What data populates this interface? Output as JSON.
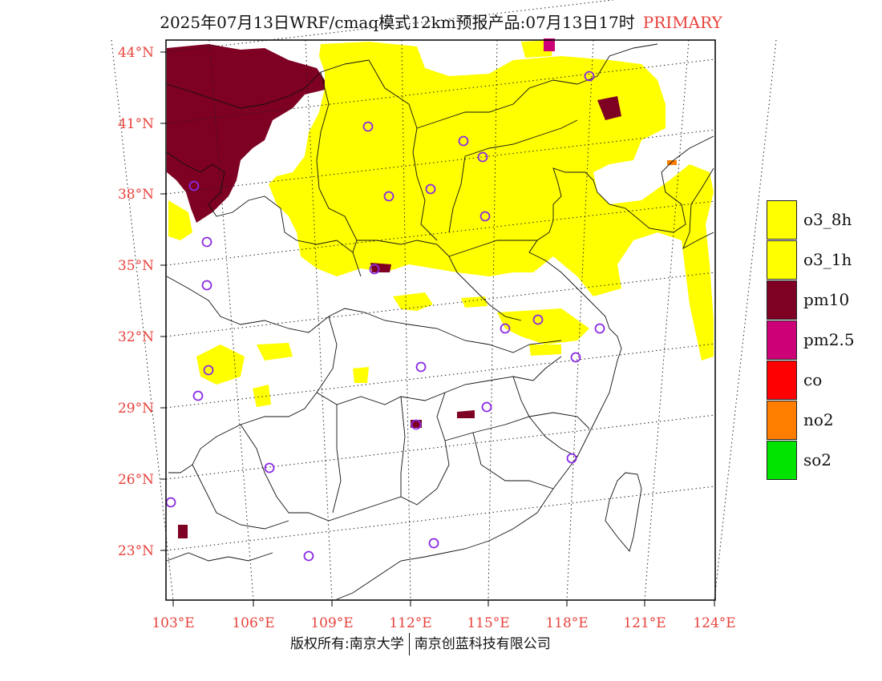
{
  "title": {
    "text": "2025年07月13日WRF/cmaq模式12km预报产品:07月13日17时",
    "tag": "PRIMARY"
  },
  "axes": {
    "lat_labels": [
      "44°N",
      "41°N",
      "38°N",
      "35°N",
      "32°N",
      "29°N",
      "26°N",
      "23°N"
    ],
    "lon_labels": [
      "103°E",
      "106°E",
      "109°E",
      "112°E",
      "115°E",
      "118°E",
      "121°E",
      "124°E"
    ],
    "label_color": "#e8423c"
  },
  "legend": [
    {
      "label": "o3_8h",
      "color": "#ffff00"
    },
    {
      "label": "o3_1h",
      "color": "#ffff00"
    },
    {
      "label": "pm10",
      "color": "#7e0023"
    },
    {
      "label": "pm2.5",
      "color": "#cc0077"
    },
    {
      "label": "co",
      "color": "#ff0000"
    },
    {
      "label": "no2",
      "color": "#ff7e00"
    },
    {
      "label": "so2",
      "color": "#00e400"
    }
  ],
  "footer": {
    "left": "版权所有:南京大学",
    "right": "南京创蓝科技有限公司"
  },
  "station_marker_color": "#8a2be2"
}
